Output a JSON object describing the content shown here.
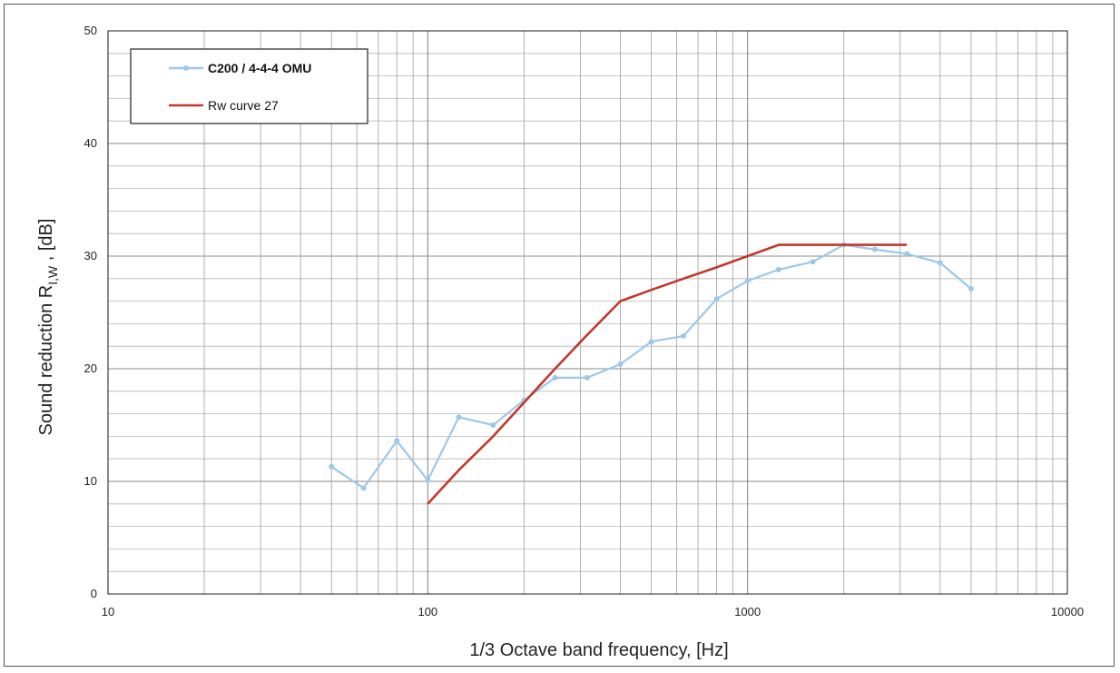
{
  "chart_data": {
    "type": "line",
    "xscale": "log",
    "xlim": [
      10,
      10000
    ],
    "ylim": [
      0,
      50
    ],
    "xticks": [
      10,
      100,
      1000,
      10000
    ],
    "xtick_labels": [
      "10",
      "100",
      "1000",
      "10000"
    ],
    "yticks": [
      0,
      10,
      20,
      30,
      40,
      50
    ],
    "ytick_labels": [
      "0",
      "10",
      "20",
      "30",
      "40",
      "50"
    ],
    "grid": true,
    "legend_position": "top-left",
    "xlabel": "1/3 Octave band frequency, [Hz]",
    "ylabel_main": "Sound reduction R",
    "ylabel_sub": "I,W",
    "ylabel_tail": " , [dB]",
    "series": [
      {
        "name": "C200 / 4-4-4 OMU",
        "color": "#9dc8e8",
        "marker": "circle",
        "x": [
          50,
          63,
          80,
          100,
          125,
          160,
          200,
          250,
          315,
          400,
          500,
          630,
          800,
          1000,
          1250,
          1600,
          2000,
          2500,
          3150,
          4000,
          5000
        ],
        "y": [
          11.3,
          9.4,
          13.6,
          10.1,
          15.7,
          15.0,
          17.2,
          19.2,
          19.2,
          20.4,
          22.4,
          22.9,
          26.2,
          27.8,
          28.8,
          29.5,
          31.0,
          30.6,
          30.2,
          29.4,
          27.1
        ]
      },
      {
        "name": "Rw curve 27",
        "color": "#c0392b",
        "marker": "none",
        "x": [
          100,
          125,
          160,
          200,
          250,
          315,
          400,
          500,
          630,
          800,
          1000,
          1250,
          1600,
          2000,
          2500,
          3150
        ],
        "y": [
          8,
          11,
          14,
          17,
          20,
          23,
          26,
          27,
          28,
          29,
          30,
          31,
          31,
          31,
          31,
          31
        ]
      }
    ]
  }
}
